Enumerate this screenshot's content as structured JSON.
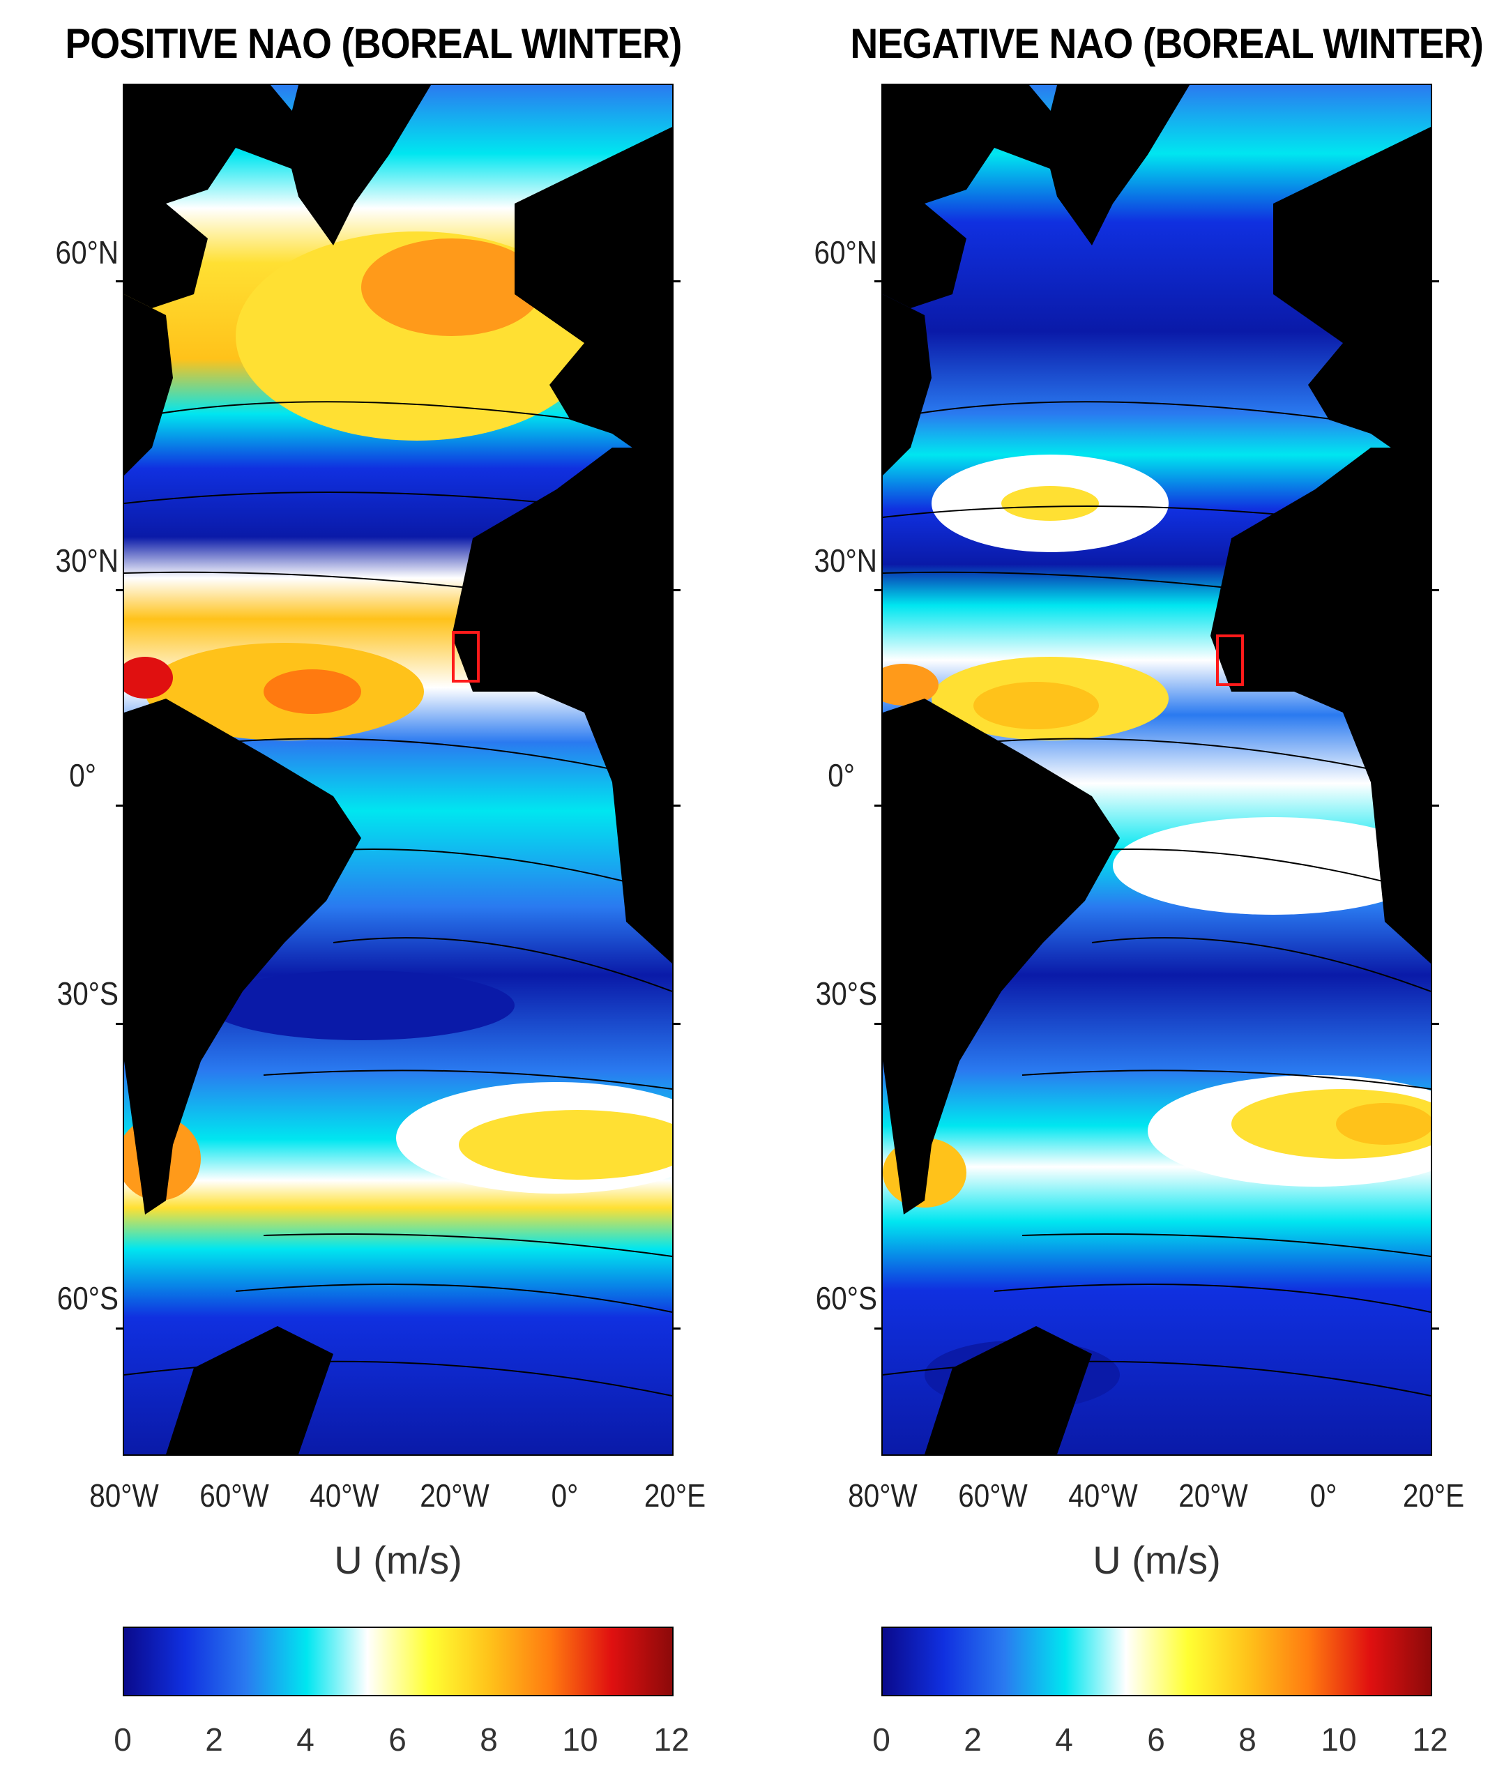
{
  "colors": {
    "land": "#000000",
    "scale": [
      "#0a0a8c",
      "#1030e0",
      "#2a7af0",
      "#00e6f0",
      "#ffffff",
      "#ffff33",
      "#ffc21a",
      "#ff7a10",
      "#e01010",
      "#8c0a0a"
    ],
    "box": "#ff1a1a"
  },
  "panels": [
    {
      "title": "POSITIVE NAO (BOREAL WINTER)",
      "lat_labels": [
        "60°N",
        "30°N",
        "0°",
        "30°S",
        "60°S"
      ],
      "lon_labels": [
        "80°W",
        "60°W",
        "40°W",
        "20°W",
        "0°",
        "20°E"
      ],
      "xlabel": "U (m/s)",
      "colorbar_ticks": [
        "0",
        "2",
        "4",
        "6",
        "8",
        "10",
        "12"
      ]
    },
    {
      "title": "NEGATIVE NAO (BOREAL WINTER)",
      "lat_labels": [
        "60°N",
        "30°N",
        "0°",
        "30°S",
        "60°S"
      ],
      "lon_labels": [
        "80°W",
        "60°W",
        "40°W",
        "20°W",
        "0°",
        "20°E"
      ],
      "xlabel": "U (m/s)",
      "colorbar_ticks": [
        "0",
        "2",
        "4",
        "6",
        "8",
        "10",
        "12"
      ]
    }
  ],
  "map_extent": {
    "lon_range": [
      -80,
      20
    ],
    "lat_range": [
      -70,
      84
    ]
  },
  "colorbar_range": [
    0,
    12
  ]
}
